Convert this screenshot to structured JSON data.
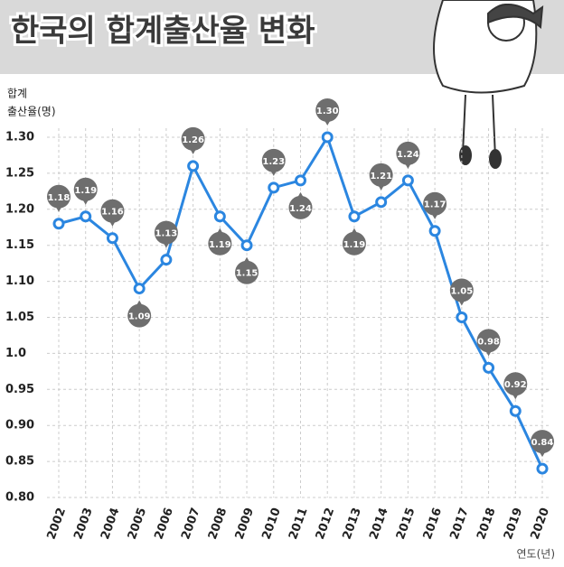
{
  "chart_data": {
    "type": "line",
    "title": "한국의 합계출산율 변화",
    "ylabel_lines": [
      "합계",
      "출산율(명)"
    ],
    "xlabel": "연도(년)",
    "categories": [
      "2002",
      "2003",
      "2004",
      "2005",
      "2006",
      "2007",
      "2008",
      "2009",
      "2010",
      "2011",
      "2012",
      "2013",
      "2014",
      "2015",
      "2016",
      "2017",
      "2018",
      "2019",
      "2020"
    ],
    "values": [
      1.18,
      1.19,
      1.16,
      1.09,
      1.13,
      1.26,
      1.19,
      1.15,
      1.23,
      1.24,
      1.3,
      1.19,
      1.21,
      1.24,
      1.17,
      1.05,
      0.98,
      0.92,
      0.84
    ],
    "value_labels": [
      "1.18",
      "1.19",
      "1.16",
      "1.09",
      "1.13",
      "1.26",
      "1.19",
      "1.15",
      "1.23",
      "1.24",
      "1.30",
      "1.19",
      "1.21",
      "1.24",
      "1.17",
      "1.05",
      "0.98",
      "0.92",
      "0.84"
    ],
    "color": "#2b86e0",
    "ylim": [
      0.8,
      1.3
    ],
    "yticks": [
      {
        "value": 0.8,
        "label": "0.80"
      },
      0.85,
      {
        "value": 0.9,
        "label": "0.90"
      },
      0.95,
      {
        "value": 1,
        "label": "1.0"
      },
      1.05,
      {
        "value": 1.1,
        "label": "1.10"
      },
      1.15,
      {
        "value": 1.2,
        "label": "1.20"
      },
      1.25,
      {
        "value": 1.3,
        "label": "1.30"
      }
    ],
    "grid": true
  }
}
